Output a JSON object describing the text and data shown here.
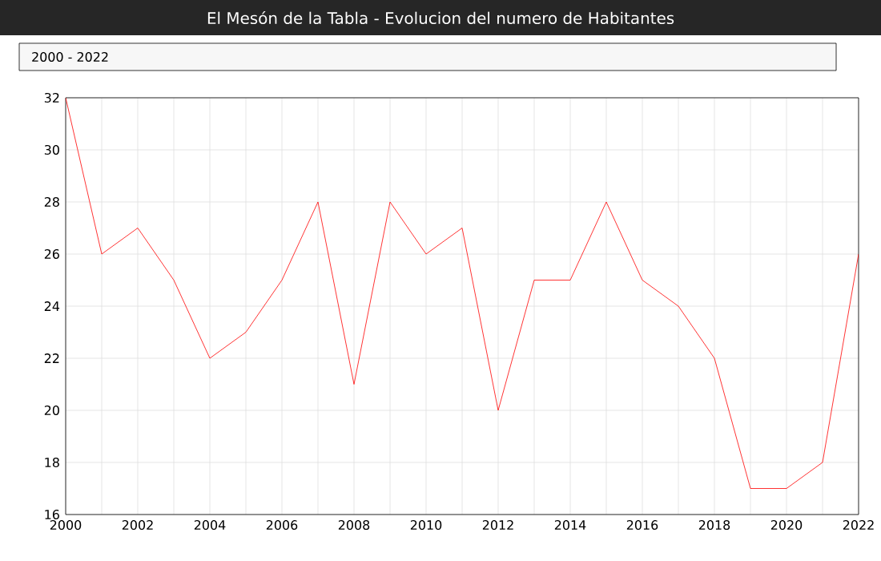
{
  "chart_data": {
    "type": "line",
    "title": "El Mesón de la Tabla - Evolucion del numero de Habitantes",
    "subtitle": "2000 - 2022",
    "x": [
      2000,
      2001,
      2002,
      2003,
      2004,
      2005,
      2006,
      2007,
      2008,
      2009,
      2010,
      2011,
      2012,
      2013,
      2014,
      2015,
      2016,
      2017,
      2018,
      2019,
      2020,
      2021,
      2022
    ],
    "series": [
      {
        "color": "#ff0000",
        "values": [
          32,
          26,
          27,
          25,
          22,
          23,
          25,
          28,
          21,
          28,
          26,
          27,
          20,
          25,
          25,
          28,
          25,
          24,
          22,
          17,
          17,
          18,
          26
        ]
      }
    ],
    "xlim": [
      2000,
      2022
    ],
    "xticks": [
      2000,
      {
        "value": 2001,
        "label": null
      },
      2002,
      {
        "value": 2003,
        "label": null
      },
      2004,
      {
        "value": 2005,
        "label": null
      },
      2006,
      {
        "value": 2007,
        "label": null
      },
      2008,
      {
        "value": 2009,
        "label": null
      },
      2010,
      {
        "value": 2011,
        "label": null
      },
      2012,
      {
        "value": 2013,
        "label": null
      },
      2014,
      {
        "value": 2015,
        "label": null
      },
      2016,
      {
        "value": 2017,
        "label": null
      },
      2018,
      {
        "value": 2019,
        "label": null
      },
      2020,
      {
        "value": 2021,
        "label": null
      },
      2022
    ],
    "ylim": [
      16,
      32
    ],
    "yticks": [
      16,
      18,
      20,
      22,
      24,
      26,
      28,
      30,
      32
    ],
    "grid": true,
    "marker": "none",
    "line_style": "solid"
  }
}
